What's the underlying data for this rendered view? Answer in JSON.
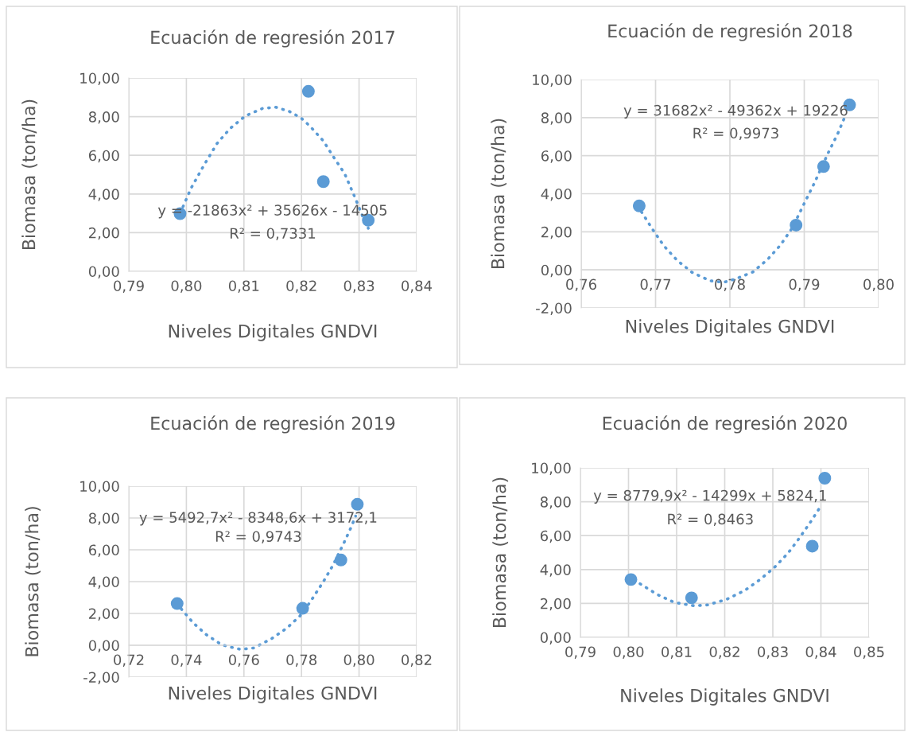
{
  "chart_data": [
    {
      "type": "scatter",
      "title": "Ecuación de regresión 2017",
      "xlabel": "Niveles Digitales GNDVI",
      "ylabel": "Biomasa (ton/ha)",
      "grid": true,
      "marker": "circle",
      "legend": false,
      "xlim": [
        0.79,
        0.84
      ],
      "xticks": [
        {
          "value": 0.79,
          "label": "0,79"
        },
        {
          "value": 0.8,
          "label": "0,80"
        },
        {
          "value": 0.81,
          "label": "0,81"
        },
        {
          "value": 0.82,
          "label": "0,82"
        },
        {
          "value": 0.83,
          "label": "0,83"
        },
        {
          "value": 0.84,
          "label": "0,84"
        }
      ],
      "ylim": [
        0,
        10
      ],
      "yticks": [
        {
          "value": 0,
          "label": "0,00"
        },
        {
          "value": 2,
          "label": "2,00"
        },
        {
          "value": 4,
          "label": "4,00"
        },
        {
          "value": 6,
          "label": "6,00"
        },
        {
          "value": 8,
          "label": "8,00"
        },
        {
          "value": 10,
          "label": "10,00"
        }
      ],
      "annotations": [
        "y = -21863x² + 35626x - 14505",
        "R² = 0,7331"
      ],
      "series": [
        {
          "color": "#5b9bd5",
          "x": [
            0.7989,
            0.8212,
            0.8238,
            0.8316
          ],
          "values": [
            2.98,
            9.31,
            4.64,
            2.64
          ]
        },
        {
          "type": "line",
          "color": "#5b9bd5",
          "line_style": "dotted",
          "marker": "none",
          "x": [
            0.7989,
            0.7994,
            0.8008,
            0.803,
            0.8053,
            0.8076,
            0.8102,
            0.8132,
            0.8155,
            0.8178,
            0.8199,
            0.8215,
            0.8238,
            0.8256,
            0.8275,
            0.8293,
            0.8309,
            0.8316
          ],
          "values": [
            3.0,
            3.33,
            4.29,
            5.46,
            6.6,
            7.39,
            8.03,
            8.42,
            8.49,
            8.28,
            7.94,
            7.5,
            6.74,
            5.9,
            5.05,
            3.81,
            2.64,
            2.23
          ]
        }
      ]
    },
    {
      "type": "scatter",
      "title": "Ecuación de regresión 2018",
      "xlabel": "Niveles Digitales GNDVI",
      "ylabel": "Biomasa (ton/ha)",
      "grid": true,
      "marker": "circle",
      "legend": false,
      "xlim": [
        0.76,
        0.8
      ],
      "xticks": [
        {
          "value": 0.76,
          "label": "0,76"
        },
        {
          "value": 0.77,
          "label": "0,77"
        },
        {
          "value": 0.78,
          "label": "0,78"
        },
        {
          "value": 0.79,
          "label": "0,79"
        },
        {
          "value": 0.8,
          "label": "0,80"
        }
      ],
      "ylim": [
        -2,
        10
      ],
      "yticks": [
        {
          "value": -2,
          "label": "-2,00"
        },
        {
          "value": 0,
          "label": "0,00"
        },
        {
          "value": 2,
          "label": "2,00"
        },
        {
          "value": 4,
          "label": "4,00"
        },
        {
          "value": 6,
          "label": "6,00"
        },
        {
          "value": 8,
          "label": "8,00"
        },
        {
          "value": 10,
          "label": "10,00"
        }
      ],
      "annotations": [
        "y = 31682x² - 49362x + 19226",
        "R² = 0,9973"
      ],
      "series": [
        {
          "color": "#5b9bd5",
          "x": [
            0.7678,
            0.7889,
            0.7926,
            0.7961
          ],
          "values": [
            3.36,
            2.35,
            5.43,
            8.67
          ]
        },
        {
          "type": "line",
          "color": "#5b9bd5",
          "line_style": "dotted",
          "marker": "none",
          "x": [
            0.7681,
            0.7696,
            0.7711,
            0.7729,
            0.7749,
            0.7773,
            0.7791,
            0.7807,
            0.7831,
            0.7851,
            0.7868,
            0.7884,
            0.7902,
            0.7914,
            0.7932,
            0.7945,
            0.7955
          ],
          "values": [
            3.05,
            2.13,
            1.27,
            0.5,
            -0.13,
            -0.57,
            -0.66,
            -0.49,
            -0.11,
            0.56,
            1.3,
            2.21,
            3.65,
            4.59,
            6.13,
            7.15,
            8.08
          ]
        }
      ]
    },
    {
      "type": "scatter",
      "title": "Ecuación de regresión 2019",
      "xlabel": "Niveles Digitales GNDVI",
      "ylabel": "Biomasa (ton/ha)",
      "grid": true,
      "marker": "circle",
      "legend": false,
      "xlim": [
        0.72,
        0.82
      ],
      "xticks": [
        {
          "value": 0.72,
          "label": "0,72"
        },
        {
          "value": 0.74,
          "label": "0,74"
        },
        {
          "value": 0.76,
          "label": "0,76"
        },
        {
          "value": 0.78,
          "label": "0,78"
        },
        {
          "value": 0.8,
          "label": "0,80"
        },
        {
          "value": 0.82,
          "label": "0,82"
        }
      ],
      "ylim": [
        -2,
        10
      ],
      "yticks": [
        {
          "value": -2,
          "label": "-2,00"
        },
        {
          "value": 0,
          "label": "0,00"
        },
        {
          "value": 2,
          "label": "2,00"
        },
        {
          "value": 4,
          "label": "4,00"
        },
        {
          "value": 6,
          "label": "6,00"
        },
        {
          "value": 8,
          "label": "8,00"
        },
        {
          "value": 10,
          "label": "10,00"
        }
      ],
      "annotations": [
        "y = 5492,7x² - 8348,6x + 3172,1",
        "R² = 0,9743"
      ],
      "series": [
        {
          "color": "#5b9bd5",
          "x": [
            0.7368,
            0.7804,
            0.7937,
            0.7994
          ],
          "values": [
            2.62,
            2.32,
            5.36,
            8.86
          ]
        },
        {
          "type": "line",
          "color": "#5b9bd5",
          "line_style": "dotted",
          "marker": "none",
          "x": [
            0.7382,
            0.7423,
            0.7469,
            0.7524,
            0.7588,
            0.7634,
            0.7694,
            0.7749,
            0.7794,
            0.7831,
            0.7877,
            0.7909,
            0.7946,
            0.7973,
            0.7988
          ],
          "values": [
            2.29,
            1.42,
            0.67,
            0.02,
            -0.26,
            -0.17,
            0.39,
            1.08,
            1.83,
            2.74,
            4.03,
            5.02,
            6.38,
            7.44,
            8.12
          ]
        }
      ]
    },
    {
      "type": "scatter",
      "title": "Ecuación de regresión 2020",
      "xlabel": "Niveles Digitales GNDVI",
      "ylabel": "Biomasa (ton/ha)",
      "grid": true,
      "marker": "circle",
      "legend": false,
      "xlim": [
        0.79,
        0.85
      ],
      "xticks": [
        {
          "value": 0.79,
          "label": "0,79"
        },
        {
          "value": 0.8,
          "label": "0,80"
        },
        {
          "value": 0.81,
          "label": "0,81"
        },
        {
          "value": 0.82,
          "label": "0,82"
        },
        {
          "value": 0.83,
          "label": "0,83"
        },
        {
          "value": 0.84,
          "label": "0,84"
        },
        {
          "value": 0.85,
          "label": "0,85"
        }
      ],
      "ylim": [
        0,
        10
      ],
      "yticks": [
        {
          "value": 0,
          "label": "0,00"
        },
        {
          "value": 2,
          "label": "2,00"
        },
        {
          "value": 4,
          "label": "4,00"
        },
        {
          "value": 6,
          "label": "6,00"
        },
        {
          "value": 8,
          "label": "8,00"
        },
        {
          "value": 10,
          "label": "10,00"
        }
      ],
      "annotations": [
        "y = 8779,9x² - 14299x + 5824,1",
        "R² = 0,8463"
      ],
      "series": [
        {
          "color": "#5b9bd5",
          "x": [
            0.8005,
            0.8131,
            0.8382,
            0.8408
          ],
          "values": [
            3.41,
            2.33,
            5.38,
            9.39
          ]
        },
        {
          "type": "line",
          "color": "#5b9bd5",
          "line_style": "dotted",
          "marker": "none",
          "x": [
            0.8024,
            0.806,
            0.8095,
            0.8137,
            0.8164,
            0.8203,
            0.8241,
            0.8274,
            0.8302,
            0.8332,
            0.8354,
            0.8379,
            0.8401
          ],
          "values": [
            3.16,
            2.52,
            2.06,
            1.86,
            1.91,
            2.23,
            2.75,
            3.42,
            4.09,
            4.98,
            5.81,
            6.83,
            7.8
          ]
        }
      ]
    }
  ]
}
